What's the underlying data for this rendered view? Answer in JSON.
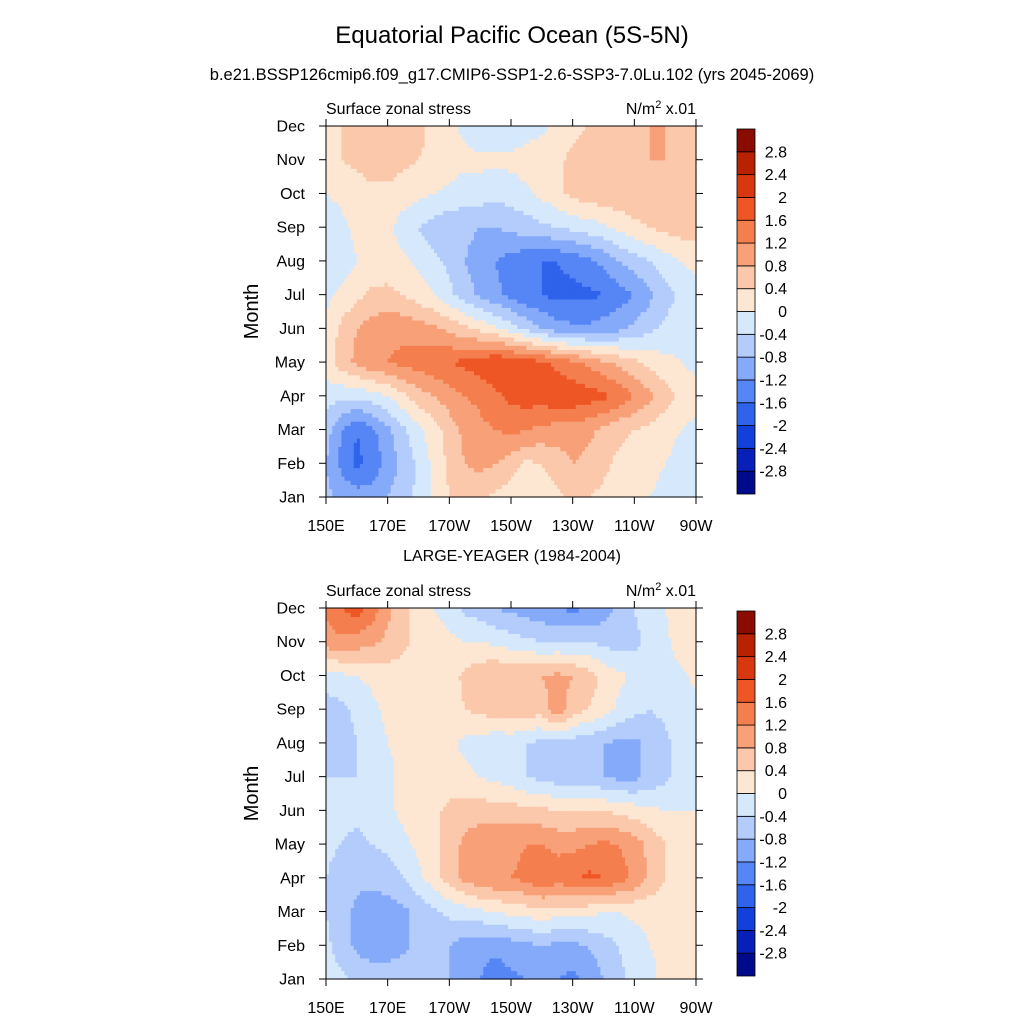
{
  "figure": {
    "title": "Equatorial Pacific Ocean (5S-5N)",
    "subtitle": "b.e21.BSSP126cmip6.f09_g17.CMIP6-SSP1-2.6-SSP3-7.0Lu.102 (yrs 2045-2069)"
  },
  "colors": {
    "levels": [
      -2.8,
      -2.4,
      -2.0,
      -1.6,
      -1.2,
      -0.8,
      -0.4,
      0,
      0.4,
      0.8,
      1.2,
      1.6,
      2.0,
      2.4,
      2.8
    ],
    "palette": [
      "#000b8c",
      "#0820b8",
      "#1240d8",
      "#2f63ec",
      "#5686f6",
      "#86aafa",
      "#b3ccfc",
      "#d6e8fb",
      "#fde6d2",
      "#fbc8ab",
      "#f8a078",
      "#f57e4e",
      "#ee5626",
      "#d73810",
      "#b82200",
      "#8a0c00"
    ]
  },
  "chart_data": [
    {
      "type": "heatmap",
      "panel_title": "",
      "left_label": "Surface zonal stress",
      "right_label": "N/m",
      "right_label_sup": "2",
      "right_label_suffix": " x.01",
      "ylabel": "Month",
      "x_ticks": [
        "150E",
        "170E",
        "170W",
        "150W",
        "130W",
        "110W",
        "90W"
      ],
      "y_ticks": [
        "Jan",
        "Feb",
        "Mar",
        "Apr",
        "May",
        "Jun",
        "Jul",
        "Aug",
        "Sep",
        "Oct",
        "Nov",
        "Dec"
      ],
      "colorbar_labels": [
        "2.8",
        "2.4",
        "2",
        "1.6",
        "1.2",
        "0.8",
        "0.4",
        "0",
        "-0.4",
        "-0.8",
        "-1.2",
        "-1.6",
        "-2",
        "-2.4",
        "-2.8"
      ],
      "x_lon": [
        150,
        155,
        160,
        165,
        170,
        175,
        180,
        185,
        190,
        195,
        200,
        205,
        210,
        215,
        220,
        225,
        230,
        235,
        240,
        245,
        250,
        255,
        260,
        265,
        270
      ],
      "z": [
        [
          -0.7,
          -0.9,
          -1.0,
          -1.0,
          -0.8,
          -0.6,
          -0.3,
          0.1,
          0.4,
          0.5,
          0.5,
          0.3,
          0.2,
          0.0,
          0.2,
          0.3,
          0.5,
          0.4,
          0.3,
          0.2,
          0.1,
          0.0,
          -0.1,
          -0.2,
          -0.3
        ],
        [
          -0.8,
          -1.3,
          -1.7,
          -1.5,
          -1.0,
          -0.7,
          -0.3,
          0.1,
          0.5,
          0.8,
          0.9,
          0.8,
          0.6,
          0.3,
          0.4,
          0.6,
          0.8,
          0.7,
          0.5,
          0.3,
          0.2,
          0.1,
          0.0,
          -0.1,
          -0.2
        ],
        [
          -0.6,
          -1.2,
          -1.6,
          -1.3,
          -0.9,
          -0.5,
          -0.1,
          0.2,
          0.6,
          0.9,
          1.1,
          1.2,
          1.3,
          1.2,
          1.1,
          1.0,
          1.0,
          0.9,
          0.7,
          0.5,
          0.4,
          0.3,
          0.1,
          0.0,
          -0.1
        ],
        [
          -0.2,
          -0.3,
          -0.3,
          -0.2,
          0.0,
          0.3,
          0.6,
          0.8,
          1.0,
          1.2,
          1.3,
          1.5,
          1.7,
          1.8,
          1.8,
          1.9,
          1.9,
          1.8,
          1.7,
          1.5,
          1.2,
          0.9,
          0.6,
          0.3,
          0.1
        ],
        [
          0.2,
          0.6,
          0.9,
          1.1,
          1.2,
          1.3,
          1.4,
          1.5,
          1.6,
          1.7,
          1.8,
          2.0,
          1.9,
          1.8,
          1.7,
          1.5,
          1.3,
          1.1,
          0.9,
          0.7,
          0.5,
          0.3,
          0.1,
          0.0,
          -0.1
        ],
        [
          0.1,
          0.5,
          0.8,
          1.0,
          1.1,
          1.1,
          1.0,
          0.9,
          0.7,
          0.5,
          0.3,
          0.1,
          -0.2,
          -0.5,
          -0.8,
          -1.0,
          -1.1,
          -1.1,
          -1.0,
          -0.9,
          -0.7,
          -0.5,
          -0.3,
          -0.1,
          0.0
        ],
        [
          -0.1,
          0.1,
          0.3,
          0.5,
          0.5,
          0.4,
          0.2,
          0.0,
          -0.3,
          -0.6,
          -0.9,
          -1.1,
          -1.3,
          -1.5,
          -1.6,
          -1.7,
          -1.7,
          -1.7,
          -1.6,
          -1.4,
          -1.2,
          -0.9,
          -0.6,
          -0.3,
          -0.1
        ],
        [
          -0.3,
          -0.2,
          0.0,
          0.1,
          0.2,
          0.1,
          -0.1,
          -0.3,
          -0.5,
          -0.8,
          -1.0,
          -1.2,
          -1.4,
          -1.5,
          -1.6,
          -1.6,
          -1.5,
          -1.3,
          -1.1,
          -0.8,
          -0.6,
          -0.4,
          -0.2,
          0.0,
          0.1
        ],
        [
          -0.3,
          -0.1,
          0.1,
          0.2,
          0.1,
          -0.2,
          -0.4,
          -0.6,
          -0.7,
          -0.7,
          -0.8,
          -0.8,
          -0.7,
          -0.6,
          -0.5,
          -0.4,
          -0.3,
          -0.2,
          -0.1,
          0.1,
          0.3,
          0.4,
          0.5,
          0.6,
          0.6
        ],
        [
          0.0,
          0.1,
          0.2,
          0.3,
          0.3,
          0.2,
          0.1,
          0.0,
          -0.1,
          -0.2,
          -0.2,
          -0.3,
          -0.2,
          -0.1,
          0.1,
          0.3,
          0.5,
          0.6,
          0.7,
          0.7,
          0.7,
          0.7,
          0.7,
          0.7,
          0.6
        ],
        [
          0.3,
          0.4,
          0.5,
          0.6,
          0.6,
          0.5,
          0.4,
          0.3,
          0.2,
          0.1,
          0.1,
          0.1,
          0.1,
          0.2,
          0.3,
          0.3,
          0.5,
          0.6,
          0.7,
          0.8,
          0.8,
          0.8,
          0.8,
          0.8,
          0.7
        ],
        [
          0.3,
          0.4,
          0.5,
          0.6,
          0.7,
          0.6,
          0.5,
          0.3,
          0.1,
          -0.1,
          -0.3,
          -0.4,
          -0.3,
          -0.2,
          -0.1,
          0.1,
          0.3,
          0.4,
          0.5,
          0.6,
          0.7,
          0.8,
          0.8,
          0.7,
          0.6
        ]
      ]
    },
    {
      "type": "heatmap",
      "panel_title": "LARGE-YEAGER (1984-2004)",
      "left_label": "Surface zonal stress",
      "right_label": "N/m",
      "right_label_sup": "2",
      "right_label_suffix": " x.01",
      "ylabel": "Month",
      "x_ticks": [
        "150E",
        "170E",
        "170W",
        "150W",
        "130W",
        "110W",
        "90W"
      ],
      "y_ticks": [
        "Jan",
        "Feb",
        "Mar",
        "Apr",
        "May",
        "Jun",
        "Jul",
        "Aug",
        "Sep",
        "Oct",
        "Nov",
        "Dec"
      ],
      "colorbar_labels": [
        "2.8",
        "2.4",
        "2",
        "1.6",
        "1.2",
        "0.8",
        "0.4",
        "0",
        "-0.4",
        "-0.8",
        "-1.2",
        "-1.6",
        "-2",
        "-2.4",
        "-2.8"
      ],
      "x_lon": [
        150,
        155,
        160,
        165,
        170,
        175,
        180,
        185,
        190,
        195,
        200,
        205,
        210,
        215,
        220,
        225,
        230,
        235,
        240,
        245,
        250,
        255,
        260,
        265,
        270
      ],
      "z": [
        [
          -0.2,
          -0.3,
          -0.5,
          -0.6,
          -0.6,
          -0.5,
          -0.4,
          -0.5,
          -0.8,
          -1.0,
          -1.2,
          -1.4,
          -1.3,
          -1.2,
          -1.0,
          -1.2,
          -1.3,
          -1.1,
          -0.8,
          -0.5,
          -0.3,
          -0.1,
          0.1,
          0.2,
          0.2
        ],
        [
          -0.3,
          -0.6,
          -0.9,
          -1.0,
          -1.0,
          -0.9,
          -0.7,
          -0.6,
          -0.8,
          -1.0,
          -1.1,
          -1.1,
          -1.0,
          -0.9,
          -0.8,
          -0.9,
          -0.9,
          -0.8,
          -0.6,
          -0.4,
          -0.2,
          0.0,
          0.1,
          0.2,
          0.2
        ],
        [
          -0.4,
          -0.6,
          -0.9,
          -1.0,
          -1.0,
          -0.9,
          -0.7,
          -0.5,
          -0.3,
          -0.2,
          -0.1,
          0.0,
          0.1,
          0.2,
          0.2,
          0.2,
          0.2,
          0.1,
          0.0,
          0.0,
          0.1,
          0.1,
          0.2,
          0.2,
          0.2
        ],
        [
          -0.4,
          -0.6,
          -0.7,
          -0.7,
          -0.6,
          -0.4,
          -0.1,
          0.2,
          0.6,
          0.9,
          1.1,
          1.2,
          1.2,
          1.3,
          1.6,
          1.4,
          1.5,
          1.7,
          1.6,
          1.4,
          1.1,
          0.7,
          0.4,
          0.2,
          0.1
        ],
        [
          -0.3,
          -0.4,
          -0.5,
          -0.4,
          -0.3,
          -0.1,
          0.1,
          0.3,
          0.6,
          0.9,
          1.1,
          1.1,
          1.1,
          1.2,
          1.2,
          1.1,
          1.1,
          1.2,
          1.3,
          1.2,
          1.0,
          0.7,
          0.4,
          0.2,
          0.1
        ],
        [
          -0.2,
          -0.3,
          -0.3,
          -0.2,
          -0.1,
          0.1,
          0.2,
          0.3,
          0.5,
          0.6,
          0.6,
          0.6,
          0.6,
          0.5,
          0.5,
          0.4,
          0.4,
          0.4,
          0.4,
          0.3,
          0.2,
          0.1,
          0.0,
          0.0,
          0.0
        ],
        [
          -0.4,
          -0.4,
          -0.4,
          -0.3,
          -0.1,
          0.1,
          0.2,
          0.2,
          0.2,
          0.1,
          0.0,
          -0.1,
          -0.2,
          -0.4,
          -0.5,
          -0.6,
          -0.6,
          -0.6,
          -0.8,
          -0.9,
          -0.9,
          -0.7,
          -0.5,
          -0.2,
          0.0
        ],
        [
          -0.8,
          -0.6,
          -0.4,
          -0.2,
          0.0,
          0.1,
          0.2,
          0.2,
          0.1,
          -0.1,
          -0.2,
          -0.3,
          -0.3,
          -0.4,
          -0.5,
          -0.5,
          -0.6,
          -0.7,
          -0.8,
          -0.9,
          -0.9,
          -0.7,
          -0.5,
          -0.2,
          0.0
        ],
        [
          -0.6,
          -0.5,
          -0.3,
          -0.1,
          0.1,
          0.2,
          0.2,
          0.2,
          0.2,
          0.4,
          0.5,
          0.6,
          0.7,
          0.6,
          0.6,
          1.1,
          0.6,
          0.4,
          0.2,
          -0.1,
          -0.3,
          -0.4,
          -0.3,
          -0.2,
          -0.1
        ],
        [
          -0.2,
          -0.1,
          0.0,
          0.1,
          0.2,
          0.2,
          0.2,
          0.2,
          0.2,
          0.5,
          0.7,
          0.8,
          0.8,
          0.8,
          0.8,
          0.9,
          0.8,
          0.6,
          0.3,
          0.1,
          -0.1,
          -0.2,
          -0.2,
          -0.1,
          0.1
        ],
        [
          1.0,
          1.1,
          1.0,
          0.9,
          0.7,
          0.5,
          0.3,
          0.2,
          0.1,
          0.0,
          0.0,
          -0.1,
          -0.2,
          -0.3,
          -0.4,
          -0.4,
          -0.4,
          -0.4,
          -0.5,
          -0.6,
          -0.5,
          -0.3,
          -0.1,
          0.2,
          0.4
        ],
        [
          1.3,
          1.6,
          1.8,
          1.4,
          0.9,
          0.5,
          0.2,
          0.0,
          -0.2,
          -0.5,
          -0.6,
          -0.8,
          -0.9,
          -1.0,
          -1.1,
          -1.2,
          -1.3,
          -1.2,
          -1.0,
          -0.7,
          -0.4,
          -0.2,
          0.0,
          0.2,
          0.4
        ]
      ]
    }
  ]
}
